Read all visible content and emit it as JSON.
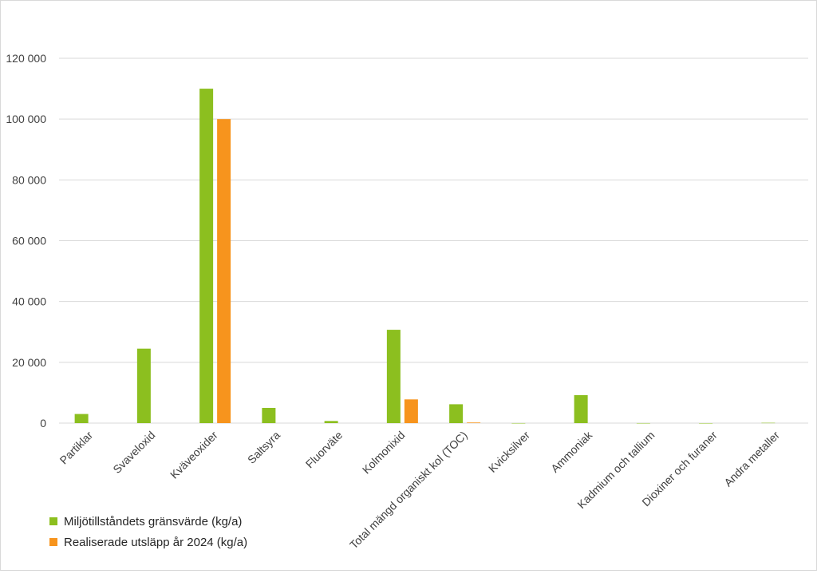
{
  "chart_data": {
    "type": "bar",
    "title": "",
    "xlabel": "",
    "ylabel": "",
    "ylim": [
      0,
      120000
    ],
    "yticks": [
      0,
      20000,
      40000,
      60000,
      80000,
      100000,
      120000
    ],
    "ytick_labels": [
      "0",
      "20 000",
      "40 000",
      "60 000",
      "80 000",
      "100 000",
      "120 000"
    ],
    "grid": true,
    "legend_position": "bottom-left",
    "categories": [
      "Partiklar",
      "Svaveloxid",
      "Kväveoxider",
      "Saltsyra",
      "Fluorväte",
      "Kolmonixid",
      "Total mängd organiskt kol (TOC)",
      "Kvicksilver",
      "Ammoniak",
      "Kadmium och tallium",
      "Dioxiner och furaner",
      "Andra metaller"
    ],
    "series": [
      {
        "name": "Miljötillståndets gränsvärde (kg/a)",
        "color": "#8cbf1f",
        "values": [
          3000,
          24500,
          110000,
          5000,
          700,
          30700,
          6200,
          10,
          9200,
          10,
          0.001,
          100
        ]
      },
      {
        "name": "Realiserade utsläpp år 2024 (kg/a)",
        "color": "#f7941d",
        "values": [
          0,
          0,
          100000,
          0,
          0,
          7800,
          200,
          0,
          0,
          0,
          0,
          0
        ]
      }
    ]
  }
}
